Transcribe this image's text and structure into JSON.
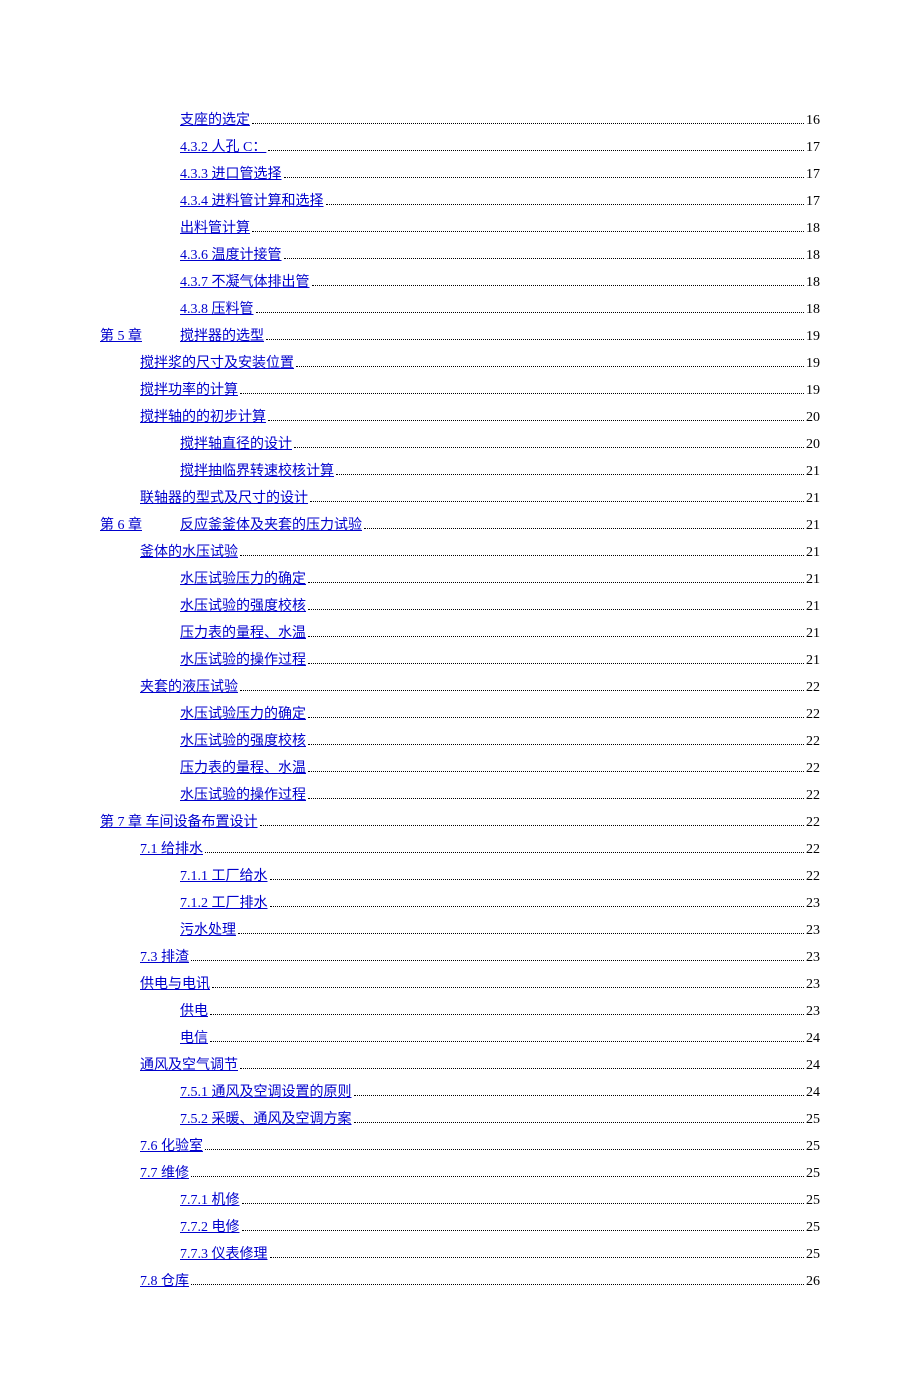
{
  "link_color": "#0000cc",
  "text_color": "#000000",
  "background_color": "#ffffff",
  "font_family": "SimSun",
  "font_size": 14,
  "entries": [
    {
      "indent": 2,
      "label": "支座的选定",
      "page": "16",
      "gap": false
    },
    {
      "indent": 2,
      "label": "4.3.2  人孔 C：",
      "page": "17",
      "gap": false
    },
    {
      "indent": 2,
      "label": "4.3.3  进口管选择",
      "page": "17",
      "gap": false
    },
    {
      "indent": 2,
      "label": "4.3.4 进料管计算和选择",
      "page": "17",
      "gap": false
    },
    {
      "indent": 2,
      "label": "出料管计算",
      "page": "18",
      "gap": false
    },
    {
      "indent": 2,
      "label": "4.3.6  温度计接管",
      "page": "18",
      "gap": false
    },
    {
      "indent": 2,
      "label": "4.3.7  不凝气体排出管",
      "page": "18",
      "gap": false
    },
    {
      "indent": 2,
      "label": "4.3.8  压料管",
      "page": "18",
      "gap": false
    },
    {
      "indent": 0,
      "label": "第 5 章",
      "label2": "搅拌器的选型",
      "page": "19",
      "gap": true
    },
    {
      "indent": 1,
      "label": "搅拌浆的尺寸及安装位置",
      "page": "19",
      "gap": false
    },
    {
      "indent": 1,
      "label": "搅拌功率的计算",
      "page": "19",
      "gap": false
    },
    {
      "indent": 1,
      "label": "搅拌轴的的初步计算",
      "page": "20",
      "gap": false
    },
    {
      "indent": 2,
      "label": "搅拌轴直径的设计",
      "page": "20",
      "gap": false
    },
    {
      "indent": 2,
      "label": "搅拌抽临界转速校核计算",
      "page": "21",
      "gap": false
    },
    {
      "indent": 1,
      "label": "联轴器的型式及尺寸的设计",
      "page": "21",
      "gap": false
    },
    {
      "indent": 0,
      "label": "第 6 章",
      "label2": "反应釜釜体及夹套的压力试验",
      "page": "21",
      "gap": true
    },
    {
      "indent": 1,
      "label": "釜体的水压试验",
      "page": "21",
      "gap": false
    },
    {
      "indent": 2,
      "label": "水压试验压力的确定",
      "page": "21",
      "gap": false
    },
    {
      "indent": 2,
      "label": "水压试验的强度校核",
      "page": "21",
      "gap": false
    },
    {
      "indent": 2,
      "label": "压力表的量程、水温",
      "page": "21",
      "gap": false
    },
    {
      "indent": 2,
      "label": "水压试验的操作过程",
      "page": "21",
      "gap": false
    },
    {
      "indent": 1,
      "label": "夹套的液压试验",
      "page": "22",
      "gap": false
    },
    {
      "indent": 2,
      "label": "水压试验压力的确定",
      "page": "22",
      "gap": false
    },
    {
      "indent": 2,
      "label": "水压试验的强度校核",
      "page": "22",
      "gap": false
    },
    {
      "indent": 2,
      "label": "压力表的量程、水温",
      "page": "22",
      "gap": false
    },
    {
      "indent": 2,
      "label": "水压试验的操作过程",
      "page": "22",
      "gap": false
    },
    {
      "indent": 0,
      "label": "第 7 章  车间设备布置设计",
      "page": "22",
      "gap": false
    },
    {
      "indent": 1,
      "label": "7.1  给排水",
      "page": "22",
      "gap": false
    },
    {
      "indent": 2,
      "label": "7.1.1  工厂给水",
      "page": "22",
      "gap": false
    },
    {
      "indent": 2,
      "label": "7.1.2  工厂排水",
      "page": "23",
      "gap": false
    },
    {
      "indent": 2,
      "label": "污水处理",
      "page": "23",
      "gap": false
    },
    {
      "indent": 1,
      "label": "7.3  排渣",
      "page": "23",
      "gap": false
    },
    {
      "indent": 1,
      "label": "供电与电讯",
      "page": "23",
      "gap": false
    },
    {
      "indent": 2,
      "label": "供电",
      "page": "23",
      "gap": false
    },
    {
      "indent": 2,
      "label": "电信",
      "page": "24",
      "gap": false
    },
    {
      "indent": 1,
      "label": "通风及空气调节",
      "page": "24",
      "gap": false
    },
    {
      "indent": 2,
      "label": "7.5.1  通风及空调设置的原则",
      "page": "24",
      "gap": false
    },
    {
      "indent": 2,
      "label": "7.5.2  采暖、通风及空调方案",
      "page": "25",
      "gap": false
    },
    {
      "indent": 1,
      "label": "7.6  化验室",
      "page": "25",
      "gap": false
    },
    {
      "indent": 1,
      "label": "7.7  维修",
      "page": "25",
      "gap": false
    },
    {
      "indent": 2,
      "label": "7.7.1  机修",
      "page": "25",
      "gap": false
    },
    {
      "indent": 2,
      "label": "7.7.2  电修",
      "page": "25",
      "gap": false
    },
    {
      "indent": 2,
      "label": "7.7.3  仪表修理",
      "page": "25",
      "gap": false
    },
    {
      "indent": 1,
      "label": "7.8  仓库",
      "page": "26",
      "gap": false
    }
  ]
}
